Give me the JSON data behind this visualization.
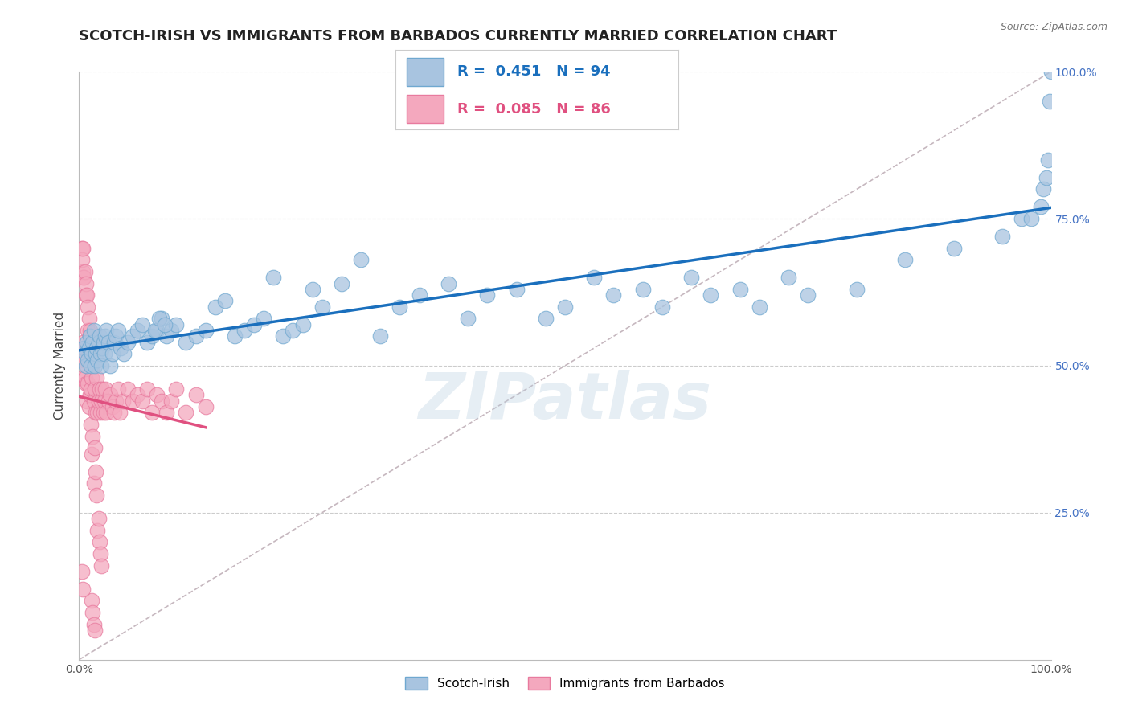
{
  "title": "SCOTCH-IRISH VS IMMIGRANTS FROM BARBADOS CURRENTLY MARRIED CORRELATION CHART",
  "source_text": "Source: ZipAtlas.com",
  "ylabel": "Currently Married",
  "watermark": "ZIPatlas",
  "xmin": 0.0,
  "xmax": 1.0,
  "ymin": 0.0,
  "ymax": 1.0,
  "series1_label": "Scotch-Irish",
  "series1_color": "#a8c4e0",
  "series1_edge": "#6fa8d0",
  "series1_R": "0.451",
  "series1_N": "94",
  "series1_trend_color": "#1a6fbd",
  "series2_label": "Immigrants from Barbados",
  "series2_color": "#f4a8be",
  "series2_edge": "#e87a9e",
  "series2_R": "0.085",
  "series2_N": "86",
  "series2_trend_color": "#e05080",
  "diag_line_color": "#c0b0b8",
  "grid_color": "#cccccc",
  "background_color": "#ffffff",
  "title_fontsize": 13,
  "label_fontsize": 11,
  "tick_fontsize": 10,
  "legend_fontsize": 13,
  "series1_x": [
    0.005,
    0.006,
    0.007,
    0.008,
    0.009,
    0.01,
    0.011,
    0.012,
    0.013,
    0.014,
    0.015,
    0.016,
    0.017,
    0.018,
    0.019,
    0.02,
    0.021,
    0.022,
    0.023,
    0.024,
    0.025,
    0.026,
    0.027,
    0.028,
    0.03,
    0.032,
    0.034,
    0.036,
    0.038,
    0.04,
    0.043,
    0.046,
    0.05,
    0.055,
    0.06,
    0.065,
    0.07,
    0.075,
    0.08,
    0.085,
    0.09,
    0.095,
    0.1,
    0.11,
    0.12,
    0.13,
    0.14,
    0.15,
    0.16,
    0.17,
    0.18,
    0.19,
    0.2,
    0.21,
    0.22,
    0.23,
    0.24,
    0.25,
    0.27,
    0.29,
    0.31,
    0.33,
    0.35,
    0.38,
    0.4,
    0.42,
    0.45,
    0.48,
    0.5,
    0.53,
    0.55,
    0.58,
    0.6,
    0.63,
    0.65,
    0.68,
    0.7,
    0.73,
    0.75,
    0.8,
    0.85,
    0.9,
    0.95,
    0.97,
    0.98,
    0.99,
    0.992,
    0.995,
    0.997,
    0.999,
    1.0,
    0.078,
    0.082,
    0.088
  ],
  "series1_y": [
    0.53,
    0.52,
    0.5,
    0.54,
    0.51,
    0.53,
    0.55,
    0.5,
    0.52,
    0.54,
    0.56,
    0.5,
    0.52,
    0.53,
    0.51,
    0.54,
    0.55,
    0.52,
    0.5,
    0.53,
    0.54,
    0.52,
    0.55,
    0.56,
    0.54,
    0.5,
    0.52,
    0.54,
    0.55,
    0.56,
    0.53,
    0.52,
    0.54,
    0.55,
    0.56,
    0.57,
    0.54,
    0.55,
    0.56,
    0.58,
    0.55,
    0.56,
    0.57,
    0.54,
    0.55,
    0.56,
    0.6,
    0.61,
    0.55,
    0.56,
    0.57,
    0.58,
    0.65,
    0.55,
    0.56,
    0.57,
    0.63,
    0.6,
    0.64,
    0.68,
    0.55,
    0.6,
    0.62,
    0.64,
    0.58,
    0.62,
    0.63,
    0.58,
    0.6,
    0.65,
    0.62,
    0.63,
    0.6,
    0.65,
    0.62,
    0.63,
    0.6,
    0.65,
    0.62,
    0.63,
    0.68,
    0.7,
    0.72,
    0.75,
    0.75,
    0.77,
    0.8,
    0.82,
    0.85,
    0.95,
    1.0,
    0.56,
    0.58,
    0.57
  ],
  "series2_x": [
    0.002,
    0.003,
    0.003,
    0.004,
    0.004,
    0.005,
    0.005,
    0.006,
    0.006,
    0.007,
    0.007,
    0.008,
    0.008,
    0.009,
    0.009,
    0.01,
    0.01,
    0.011,
    0.011,
    0.012,
    0.012,
    0.013,
    0.013,
    0.014,
    0.014,
    0.015,
    0.015,
    0.016,
    0.016,
    0.017,
    0.017,
    0.018,
    0.018,
    0.019,
    0.019,
    0.02,
    0.02,
    0.021,
    0.021,
    0.022,
    0.022,
    0.023,
    0.023,
    0.024,
    0.025,
    0.026,
    0.027,
    0.028,
    0.03,
    0.032,
    0.034,
    0.036,
    0.038,
    0.04,
    0.042,
    0.045,
    0.05,
    0.055,
    0.06,
    0.065,
    0.07,
    0.075,
    0.08,
    0.085,
    0.09,
    0.095,
    0.1,
    0.11,
    0.12,
    0.13,
    0.003,
    0.004,
    0.005,
    0.006,
    0.007,
    0.008,
    0.009,
    0.01,
    0.011,
    0.012,
    0.013,
    0.014,
    0.015,
    0.016,
    0.003,
    0.004
  ],
  "series2_y": [
    0.52,
    0.7,
    0.48,
    0.54,
    0.66,
    0.51,
    0.65,
    0.53,
    0.48,
    0.47,
    0.62,
    0.5,
    0.44,
    0.47,
    0.56,
    0.52,
    0.43,
    0.45,
    0.55,
    0.46,
    0.4,
    0.48,
    0.35,
    0.5,
    0.38,
    0.44,
    0.3,
    0.46,
    0.36,
    0.42,
    0.32,
    0.48,
    0.28,
    0.42,
    0.22,
    0.44,
    0.24,
    0.46,
    0.2,
    0.42,
    0.18,
    0.44,
    0.16,
    0.46,
    0.42,
    0.44,
    0.46,
    0.42,
    0.44,
    0.45,
    0.43,
    0.42,
    0.44,
    0.46,
    0.42,
    0.44,
    0.46,
    0.44,
    0.45,
    0.44,
    0.46,
    0.42,
    0.45,
    0.44,
    0.42,
    0.44,
    0.46,
    0.42,
    0.45,
    0.43,
    0.68,
    0.7,
    0.65,
    0.66,
    0.64,
    0.62,
    0.6,
    0.58,
    0.56,
    0.54,
    0.1,
    0.08,
    0.06,
    0.05,
    0.15,
    0.12
  ]
}
